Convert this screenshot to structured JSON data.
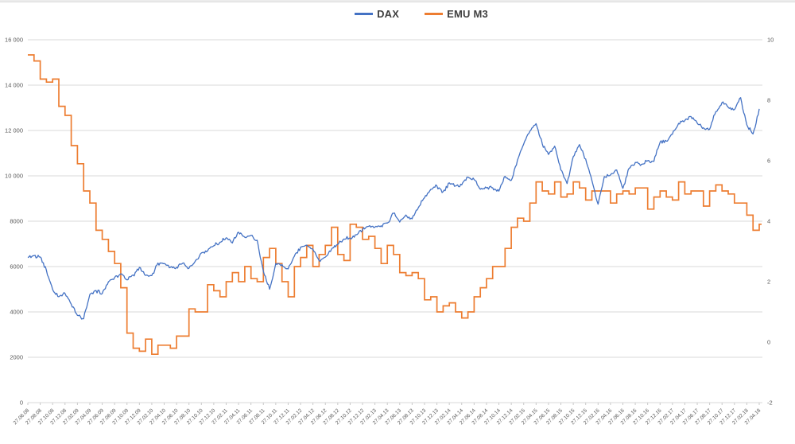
{
  "colors": {
    "background": "#FFFFFF",
    "grid": "#D9D9D9",
    "tick_mark": "#C9C9C9",
    "axis_text": "#595959",
    "legend_text": "#3F3F3F",
    "dax_blue": "#4472C4",
    "emu_orange": "#ED7D31"
  },
  "chart_data": {
    "type": "line",
    "title": "",
    "grid": "horizontal",
    "legend_position": "top-center",
    "x_ticklabels": [
      "27.06.08",
      "27.08.08",
      "27.10.08",
      "27.12.08",
      "27.02.09",
      "27.04.09",
      "27.06.09",
      "27.08.09",
      "27.10.09",
      "27.12.09",
      "27.02.10",
      "27.04.10",
      "27.06.10",
      "27.08.10",
      "27.10.10",
      "27.12.10",
      "27.02.11",
      "27.04.11",
      "27.06.11",
      "27.08.11",
      "27.10.11",
      "27.12.11",
      "27.02.12",
      "27.04.12",
      "27.06.12",
      "27.08.12",
      "27.10.12",
      "27.12.12",
      "27.02.13",
      "27.04.13",
      "27.06.13",
      "27.08.13",
      "27.10.13",
      "27.12.13",
      "27.02.14",
      "27.04.14",
      "27.06.14",
      "27.08.14",
      "27.10.14",
      "27.12.14",
      "27.02.15",
      "27.04.15",
      "27.06.15",
      "27.08.15",
      "27.10.15",
      "27.12.15",
      "27.02.16",
      "27.04.16",
      "27.06.16",
      "27.08.16",
      "27.10.16",
      "27.12.16",
      "27.02.17",
      "27.04.17",
      "27.06.17",
      "27.08.17",
      "27.10.17",
      "27.12.17",
      "27.02.18",
      "27.04.18"
    ],
    "x_tick_every_n_months": 2,
    "left_axis": {
      "min": 0,
      "max": 16000,
      "tickvalues": [
        0,
        2000,
        4000,
        6000,
        8000,
        10000,
        12000,
        14000,
        16000
      ],
      "ticklabels": [
        "0",
        "2000",
        "4000",
        "6000",
        "8000",
        "10 000",
        "12 000",
        "14 000",
        "16 000"
      ]
    },
    "right_axis": {
      "min": -2,
      "max": 10,
      "tickvalues": [
        -2,
        0,
        2,
        4,
        6,
        8,
        10
      ],
      "ticklabels": [
        "-2",
        "0",
        "2",
        "4",
        "6",
        "8",
        "10"
      ]
    },
    "series": [
      {
        "name": "DAX",
        "color": "#4472C4",
        "axis": "left",
        "line_style": "jagged-daily",
        "values": [
          6400,
          6480,
          6420,
          5830,
          4990,
          4670,
          4810,
          4340,
          3845,
          3700,
          4770,
          4940,
          4810,
          5330,
          5520,
          5675,
          5415,
          5625,
          5960,
          5610,
          5600,
          6155,
          6135,
          5965,
          5965,
          6150,
          5925,
          6230,
          6600,
          6690,
          6915,
          7075,
          7270,
          7040,
          7515,
          7295,
          7375,
          7160,
          5785,
          5000,
          6140,
          6090,
          5900,
          6460,
          6855,
          6945,
          6760,
          6265,
          6415,
          6770,
          6970,
          7215,
          7260,
          7405,
          7610,
          7775,
          7740,
          7795,
          7915,
          8350,
          7960,
          8275,
          8105,
          8595,
          9035,
          9405,
          9550,
          9305,
          9690,
          9555,
          9605,
          9945,
          9835,
          9410,
          9470,
          9475,
          9325,
          9980,
          9805,
          10695,
          11400,
          11965,
          12300,
          11410,
          10945,
          11310,
          10260,
          9660,
          10850,
          11380,
          10745,
          9800,
          8750,
          9965,
          10040,
          10260,
          9450,
          10335,
          10590,
          10510,
          10665,
          10640,
          11480,
          11535,
          11835,
          12315,
          12440,
          12615,
          12325,
          12120,
          12055,
          12830,
          13230,
          13025,
          12920,
          13450,
          12250,
          11850,
          12950
        ]
      },
      {
        "name": "EMU M3",
        "color": "#ED7D31",
        "axis": "right",
        "line_style": "step",
        "values": [
          9.5,
          9.3,
          8.7,
          8.6,
          8.7,
          7.8,
          7.5,
          6.5,
          5.9,
          5.0,
          4.6,
          3.7,
          3.4,
          3.0,
          2.6,
          1.8,
          0.3,
          -0.2,
          -0.3,
          0.1,
          -0.4,
          -0.1,
          -0.1,
          -0.2,
          0.2,
          0.2,
          1.1,
          1.0,
          1.0,
          1.9,
          1.7,
          1.5,
          2.0,
          2.3,
          2.0,
          2.5,
          2.1,
          2.0,
          2.8,
          3.1,
          2.6,
          2.0,
          1.5,
          2.5,
          2.8,
          3.2,
          2.5,
          2.9,
          3.2,
          3.8,
          2.9,
          2.7,
          3.9,
          3.8,
          3.4,
          3.5,
          3.1,
          2.6,
          3.2,
          2.9,
          2.3,
          2.2,
          2.3,
          2.1,
          1.4,
          1.5,
          1.0,
          1.2,
          1.3,
          1.0,
          0.8,
          1.0,
          1.5,
          1.8,
          2.1,
          2.5,
          2.5,
          3.1,
          3.8,
          4.1,
          4.0,
          4.6,
          5.3,
          5.0,
          4.9,
          5.3,
          4.8,
          4.9,
          5.3,
          5.1,
          4.7,
          5.0,
          5.0,
          5.0,
          4.6,
          4.9,
          5.0,
          4.9,
          5.1,
          5.1,
          4.4,
          4.8,
          5.0,
          4.8,
          4.7,
          5.3,
          4.9,
          5.0,
          5.0,
          4.5,
          5.0,
          5.2,
          5.0,
          4.9,
          4.6,
          4.6,
          4.2,
          3.7,
          3.9
        ]
      }
    ]
  }
}
